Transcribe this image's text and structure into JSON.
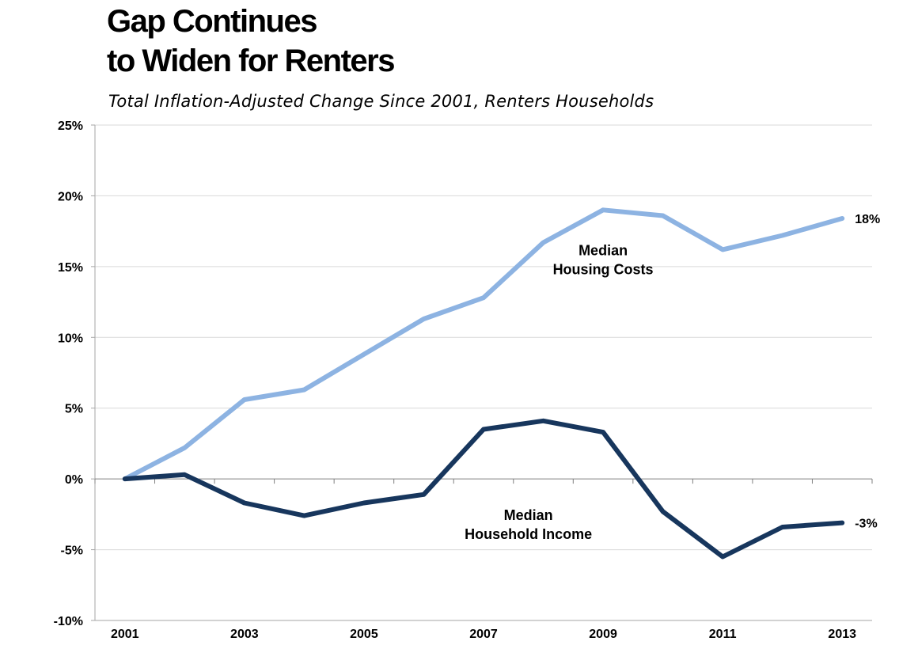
{
  "chart_data": {
    "type": "line",
    "title_lines": [
      "Gap Continues",
      "to Widen for Renters"
    ],
    "subtitle": "Total Inflation-Adjusted Change Since 2001, Renters Households",
    "xlabel": "",
    "ylabel": "",
    "x": [
      2001,
      2002,
      2003,
      2004,
      2005,
      2006,
      2007,
      2008,
      2009,
      2010,
      2011,
      2012,
      2013
    ],
    "x_tick_labels": [
      "2001",
      "2003",
      "2005",
      "2007",
      "2009",
      "2011",
      "2013"
    ],
    "x_tick_values": [
      2001,
      2003,
      2005,
      2007,
      2009,
      2011,
      2013
    ],
    "xlim": [
      2000.5,
      2013.5
    ],
    "ylim": [
      -10,
      25
    ],
    "y_ticks": [
      -10,
      -5,
      0,
      5,
      10,
      15,
      20,
      25
    ],
    "y_tick_labels": [
      "-10%",
      "-5%",
      "0%",
      "5%",
      "10%",
      "15%",
      "20%",
      "25%"
    ],
    "grid": true,
    "series": [
      {
        "name_lines": [
          "Median",
          "Housing Costs"
        ],
        "color": "#8db3e2",
        "values": [
          0.0,
          2.2,
          5.6,
          6.3,
          8.8,
          11.3,
          12.8,
          16.7,
          19.0,
          18.6,
          16.2,
          17.2,
          18.4
        ],
        "end_label": "18%",
        "label_anchor": [
          2009.0,
          15.8
        ]
      },
      {
        "name_lines": [
          "Median",
          "Household Income"
        ],
        "color": "#17365d",
        "values": [
          0.0,
          0.3,
          -1.7,
          -2.6,
          -1.7,
          -1.1,
          3.5,
          4.1,
          3.3,
          -2.3,
          -5.5,
          -3.4,
          -3.1
        ],
        "end_label": "-3%",
        "label_anchor": [
          2007.75,
          -2.9
        ]
      }
    ]
  }
}
